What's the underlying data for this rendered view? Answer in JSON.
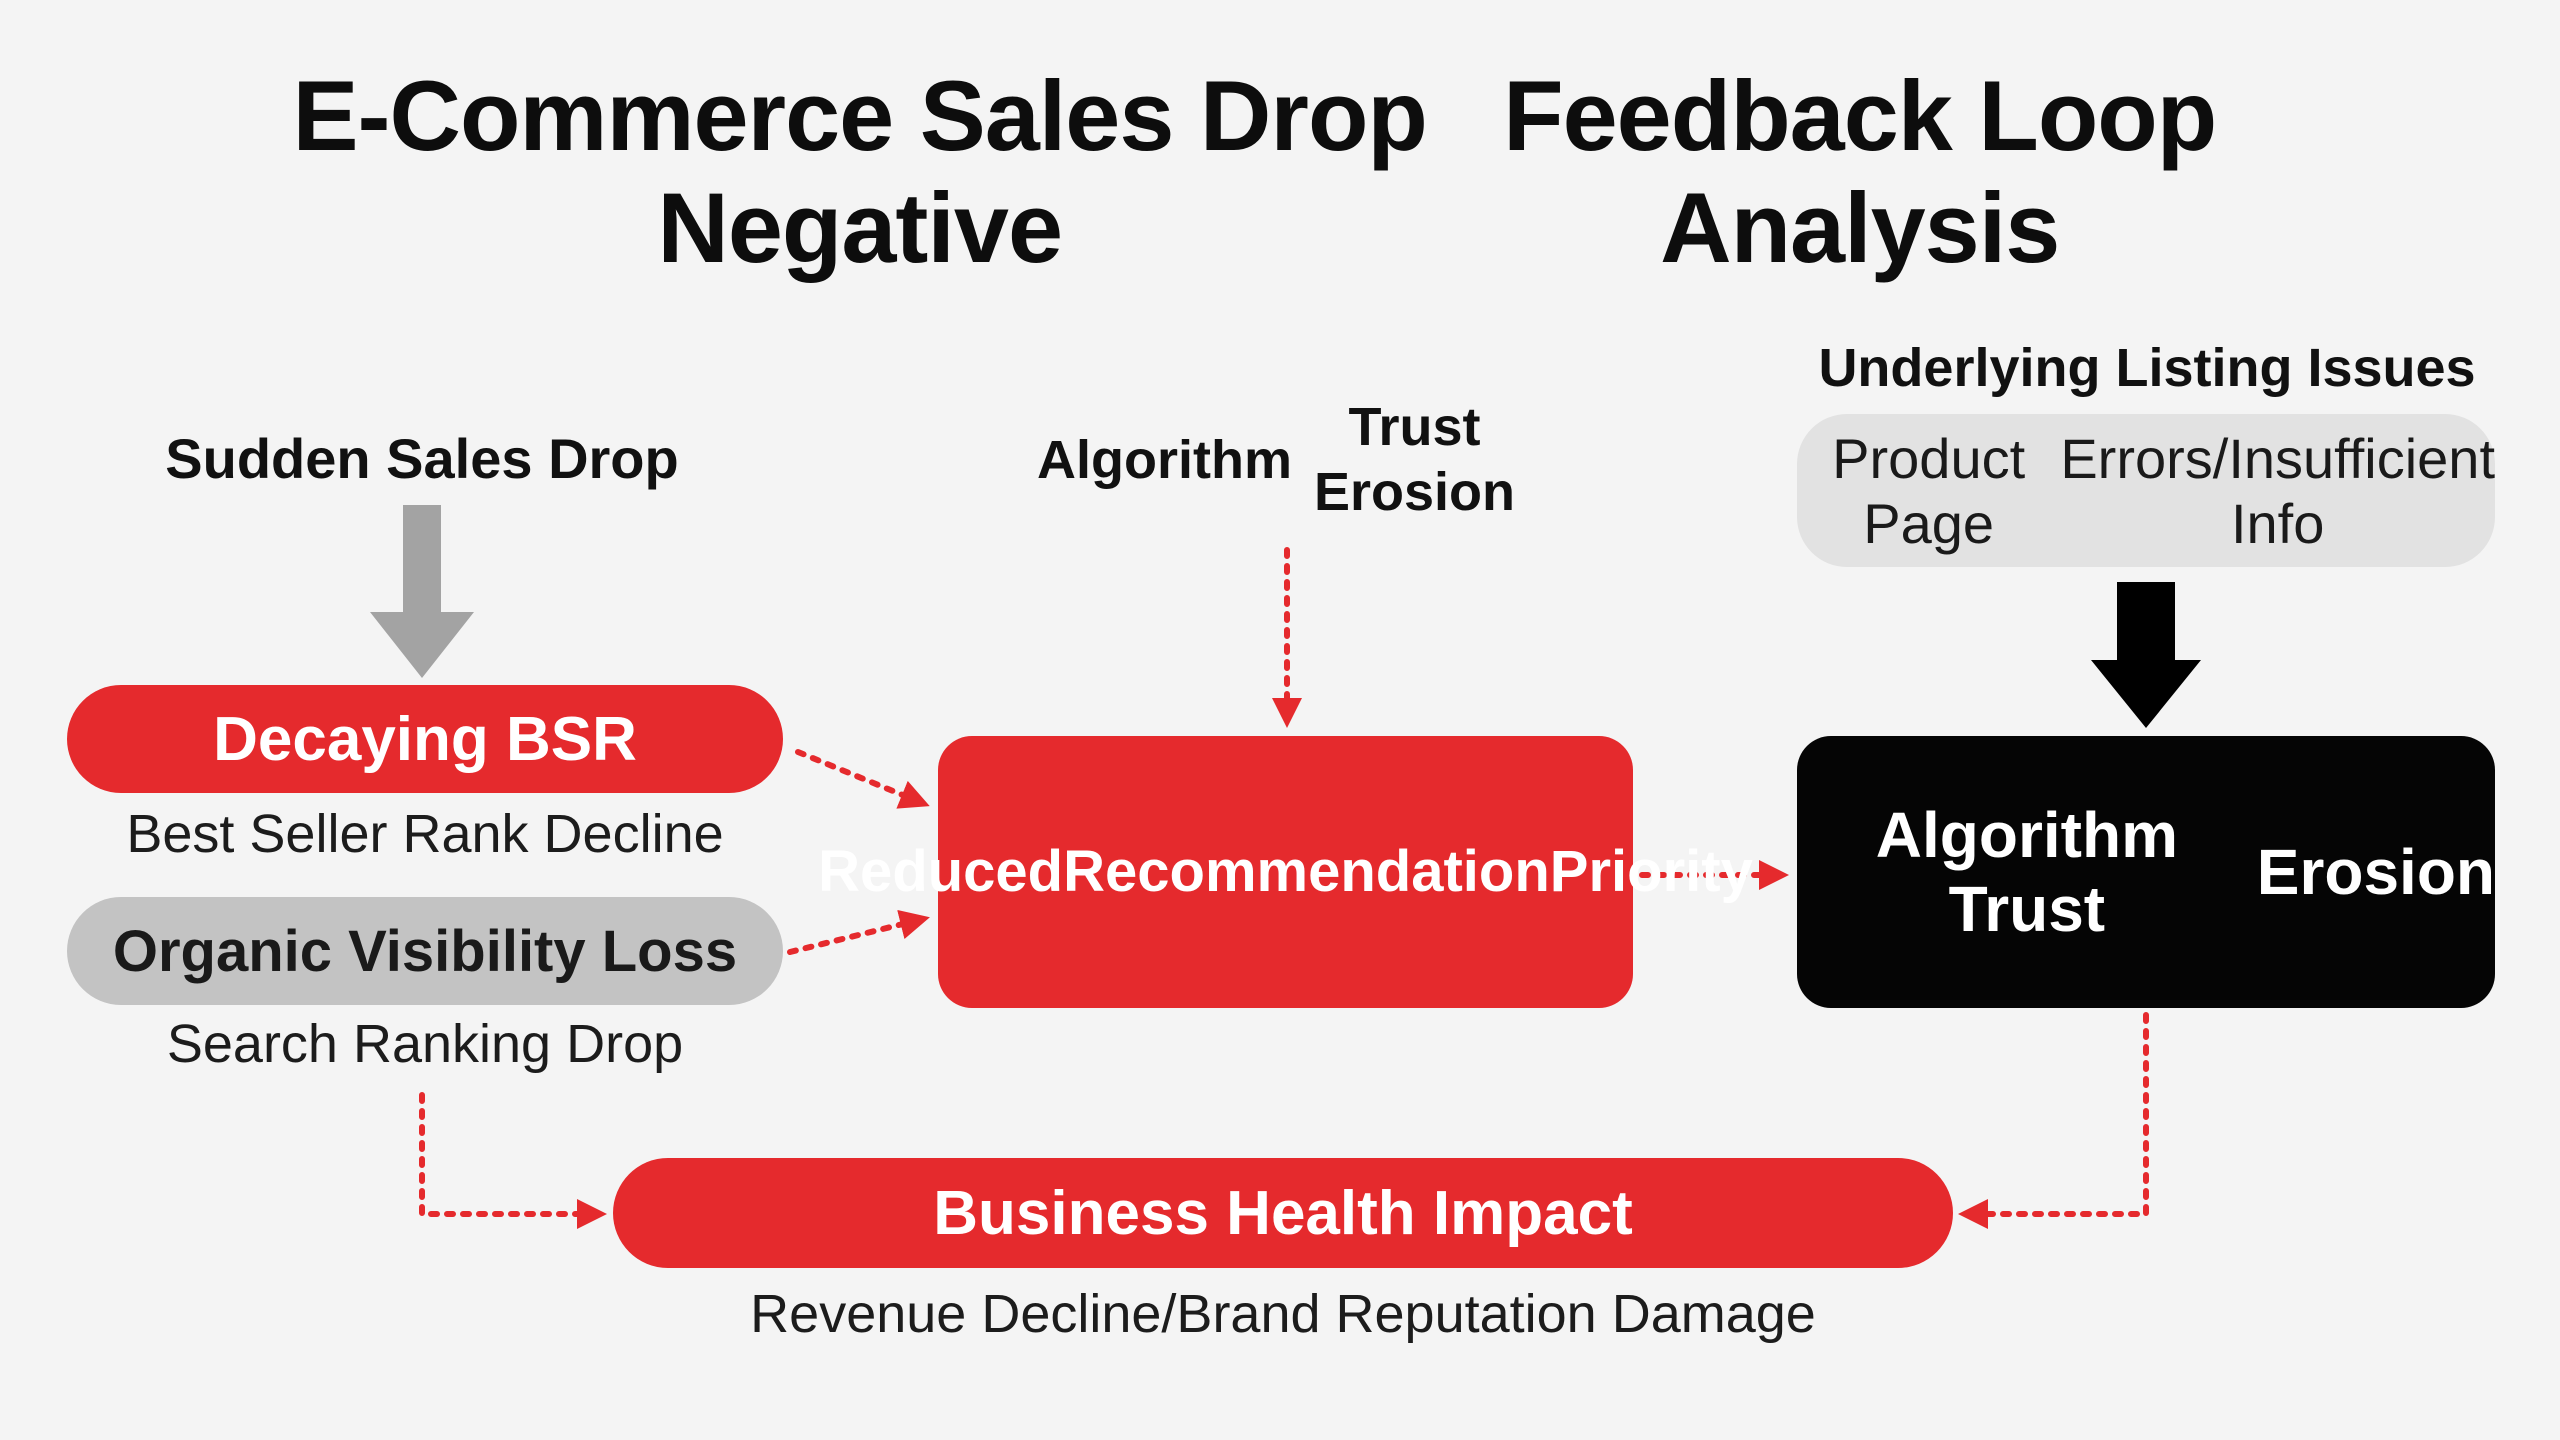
{
  "title": {
    "line1": "E-Commerce Sales Drop Negative",
    "line2": "Feedback Loop Analysis"
  },
  "inputs": {
    "sales_drop": "Sudden Sales Drop",
    "algorithm_trust": {
      "line1": "Algorithm",
      "line2": "Trust Erosion"
    },
    "listing_issues": "Underlying Listing Issues"
  },
  "listing_box": {
    "line1": "Product Page",
    "line2": "Errors/Insufficient Info"
  },
  "decaying_bsr": {
    "label": "Decaying BSR",
    "sub": "Best Seller Rank Decline"
  },
  "organic_visibility": {
    "label": "Organic Visibility Loss",
    "sub": "Search Ranking Drop"
  },
  "reduced_recommendation": {
    "line1": "Reduced",
    "line2": "Recommendation",
    "line3": "Priority"
  },
  "algorithm_trust_box": {
    "line1": "Algorithm Trust",
    "line2": "Erosion"
  },
  "business_health": {
    "label": "Business Health Impact",
    "sub": "Revenue Decline/Brand Reputation Damage"
  },
  "colors": {
    "accent_red": "#e52a2d",
    "dark": "#050505",
    "grey_arrow": "#a3a3a3",
    "grey_pill": "#c3c3c3",
    "light_box": "#e2e2e2",
    "background": "#f4f4f4"
  }
}
